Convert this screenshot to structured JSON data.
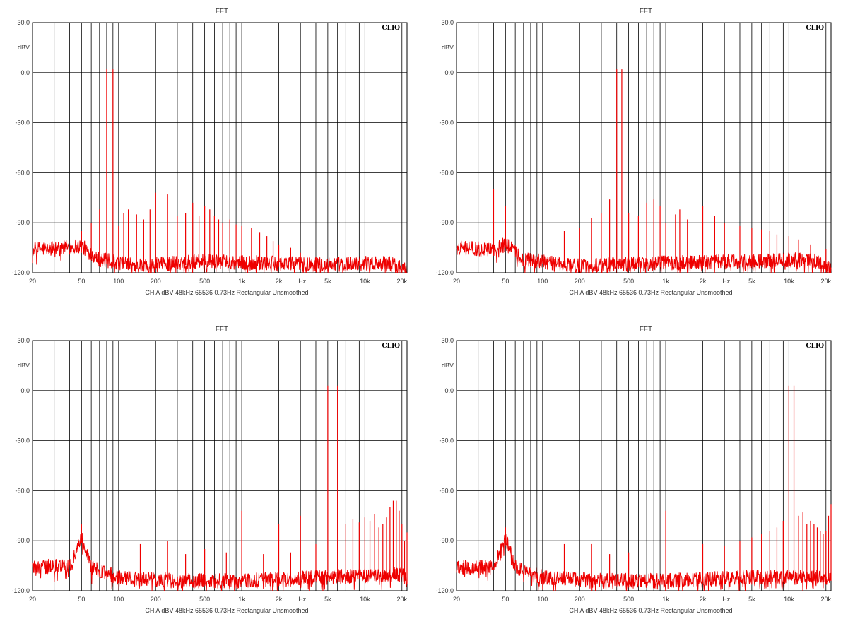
{
  "colors": {
    "trace": "#ee0000",
    "grid": "#000000",
    "frame": "#000000",
    "background": "#ffffff"
  },
  "chart_data": [
    {
      "type": "line",
      "title": "FFT",
      "ylabel": "dBV",
      "xunit": "Hz",
      "brand": "CLIO",
      "settings": "CH A   dBV   48kHz   65536   0.73Hz   Rectangular   Unsmoothed",
      "xscale": "log",
      "xlim": [
        20,
        22000
      ],
      "ylim": [
        -120,
        30
      ],
      "yticks": [
        "30.0",
        "0.0",
        "-30.0",
        "-60.0",
        "-90.0",
        "-120.0"
      ],
      "xticks": [
        "20",
        "50",
        "100",
        "200",
        "500",
        "1k",
        "2k",
        "5k",
        "10k",
        "20k"
      ],
      "grid": true,
      "noise_floor": [
        [
          20,
          -106
        ],
        [
          50,
          -104
        ],
        [
          70,
          -112
        ],
        [
          150,
          -116
        ],
        [
          400,
          -113
        ],
        [
          1000,
          -114
        ],
        [
          5000,
          -115
        ],
        [
          15000,
          -114
        ],
        [
          22000,
          -118
        ]
      ],
      "peaks": [
        [
          45,
          -100
        ],
        [
          50,
          -95
        ],
        [
          60,
          -90
        ],
        [
          70,
          -82
        ],
        [
          80,
          2
        ],
        [
          90,
          2
        ],
        [
          100,
          -92
        ],
        [
          110,
          -84
        ],
        [
          120,
          -82
        ],
        [
          140,
          -85
        ],
        [
          160,
          -88
        ],
        [
          180,
          -82
        ],
        [
          200,
          -72
        ],
        [
          250,
          -73
        ],
        [
          300,
          -86
        ],
        [
          350,
          -84
        ],
        [
          400,
          -78
        ],
        [
          450,
          -86
        ],
        [
          500,
          -80
        ],
        [
          550,
          -82
        ],
        [
          600,
          -86
        ],
        [
          650,
          -88
        ],
        [
          700,
          -90
        ],
        [
          800,
          -88
        ],
        [
          900,
          -91
        ],
        [
          1000,
          -92
        ],
        [
          1200,
          -93
        ],
        [
          1400,
          -96
        ],
        [
          1600,
          -98
        ],
        [
          1800,
          -101
        ],
        [
          2000,
          -103
        ],
        [
          2500,
          -105
        ],
        [
          3000,
          -108
        ]
      ]
    },
    {
      "type": "line",
      "title": "FFT",
      "ylabel": "dBV",
      "xunit": "Hz",
      "brand": "CLIO",
      "settings": "CH A   dBV   48kHz   65536   0.73Hz   Rectangular   Unsmoothed",
      "xscale": "log",
      "xlim": [
        20,
        22000
      ],
      "ylim": [
        -120,
        30
      ],
      "yticks": [
        "30.0",
        "0.0",
        "-30.0",
        "-60.0",
        "-90.0",
        "-120.0"
      ],
      "xticks": [
        "20",
        "50",
        "100",
        "200",
        "500",
        "1k",
        "2k",
        "5k",
        "10k",
        "20k"
      ],
      "grid": true,
      "noise_floor": [
        [
          20,
          -105
        ],
        [
          40,
          -106
        ],
        [
          50,
          -103
        ],
        [
          70,
          -112
        ],
        [
          200,
          -116
        ],
        [
          1000,
          -114
        ],
        [
          5000,
          -113
        ],
        [
          15000,
          -112
        ],
        [
          22000,
          -118
        ]
      ],
      "peaks": [
        [
          40,
          -70
        ],
        [
          50,
          -80
        ],
        [
          150,
          -95
        ],
        [
          200,
          -93
        ],
        [
          250,
          -87
        ],
        [
          300,
          -84
        ],
        [
          350,
          -76
        ],
        [
          400,
          2
        ],
        [
          440,
          2
        ],
        [
          500,
          -84
        ],
        [
          600,
          -86
        ],
        [
          700,
          -78
        ],
        [
          800,
          -76
        ],
        [
          900,
          -80
        ],
        [
          1000,
          -90
        ],
        [
          1200,
          -85
        ],
        [
          1300,
          -82
        ],
        [
          1500,
          -88
        ],
        [
          2000,
          -80
        ],
        [
          2500,
          -86
        ],
        [
          3000,
          -90
        ],
        [
          4000,
          -92
        ],
        [
          5000,
          -93
        ],
        [
          6000,
          -94
        ],
        [
          7000,
          -95
        ],
        [
          8000,
          -97
        ],
        [
          10000,
          -98
        ],
        [
          12000,
          -100
        ],
        [
          15000,
          -103
        ],
        [
          20000,
          -106
        ]
      ]
    },
    {
      "type": "line",
      "title": "FFT",
      "ylabel": "dBV",
      "xunit": "Hz",
      "brand": "CLIO",
      "settings": "CH A   dBV   48kHz   65536   0.73Hz   Rectangular   Unsmoothed",
      "xscale": "log",
      "xlim": [
        20,
        22000
      ],
      "ylim": [
        -120,
        30
      ],
      "yticks": [
        "30.0",
        "0.0",
        "-30.0",
        "-60.0",
        "-90.0",
        "-120.0"
      ],
      "xticks": [
        "20",
        "50",
        "100",
        "200",
        "500",
        "1k",
        "2k",
        "5k",
        "10k",
        "20k"
      ],
      "grid": true,
      "noise_floor": [
        [
          20,
          -106
        ],
        [
          40,
          -105
        ],
        [
          50,
          -88
        ],
        [
          60,
          -106
        ],
        [
          100,
          -112
        ],
        [
          300,
          -114
        ],
        [
          1000,
          -114
        ],
        [
          5000,
          -112
        ],
        [
          20000,
          -110
        ],
        [
          22000,
          -114
        ]
      ],
      "peaks": [
        [
          50,
          -80
        ],
        [
          150,
          -92
        ],
        [
          250,
          -90
        ],
        [
          350,
          -98
        ],
        [
          500,
          -95
        ],
        [
          750,
          -97
        ],
        [
          1000,
          -72
        ],
        [
          1500,
          -98
        ],
        [
          2000,
          -80
        ],
        [
          2500,
          -97
        ],
        [
          3000,
          -75
        ],
        [
          4000,
          -92
        ],
        [
          5000,
          3
        ],
        [
          6000,
          3
        ],
        [
          7000,
          -80
        ],
        [
          8000,
          -77
        ],
        [
          9000,
          -79
        ],
        [
          10000,
          -76
        ],
        [
          11000,
          -78
        ],
        [
          12000,
          -74
        ],
        [
          13000,
          -82
        ],
        [
          14000,
          -80
        ],
        [
          15000,
          -76
        ],
        [
          16000,
          -70
        ],
        [
          17000,
          -66
        ],
        [
          18000,
          -66
        ],
        [
          19000,
          -72
        ],
        [
          20000,
          -80
        ],
        [
          21000,
          -90
        ],
        [
          22000,
          -85
        ]
      ]
    },
    {
      "type": "line",
      "title": "FFT",
      "ylabel": "dBV",
      "xunit": "Hz",
      "brand": "CLIO",
      "settings": "CH A   dBV   48kHz   65536   0.73Hz   Rectangular   Unsmoothed",
      "xscale": "log",
      "xlim": [
        20,
        22000
      ],
      "ylim": [
        -120,
        30
      ],
      "yticks": [
        "30.0",
        "0.0",
        "-30.0",
        "-60.0",
        "-90.0",
        "-120.0"
      ],
      "xticks": [
        "20",
        "50",
        "100",
        "200",
        "500",
        "1k",
        "2k",
        "5k",
        "10k",
        "20k"
      ],
      "grid": true,
      "noise_floor": [
        [
          20,
          -106
        ],
        [
          40,
          -106
        ],
        [
          50,
          -88
        ],
        [
          60,
          -106
        ],
        [
          100,
          -112
        ],
        [
          300,
          -114
        ],
        [
          1000,
          -114
        ],
        [
          5000,
          -112
        ],
        [
          22000,
          -112
        ]
      ],
      "peaks": [
        [
          50,
          -82
        ],
        [
          150,
          -92
        ],
        [
          250,
          -92
        ],
        [
          350,
          -98
        ],
        [
          500,
          -97
        ],
        [
          1000,
          -72
        ],
        [
          2000,
          -92
        ],
        [
          3000,
          -93
        ],
        [
          4000,
          -90
        ],
        [
          5000,
          -88
        ],
        [
          6000,
          -86
        ],
        [
          7000,
          -84
        ],
        [
          8000,
          -82
        ],
        [
          9000,
          -78
        ],
        [
          10000,
          3
        ],
        [
          11000,
          3
        ],
        [
          12000,
          -75
        ],
        [
          13000,
          -73
        ],
        [
          14000,
          -80
        ],
        [
          15000,
          -78
        ],
        [
          16000,
          -80
        ],
        [
          17000,
          -82
        ],
        [
          18000,
          -84
        ],
        [
          19000,
          -86
        ],
        [
          20000,
          -84
        ],
        [
          21000,
          -75
        ],
        [
          22000,
          -68
        ]
      ]
    }
  ]
}
